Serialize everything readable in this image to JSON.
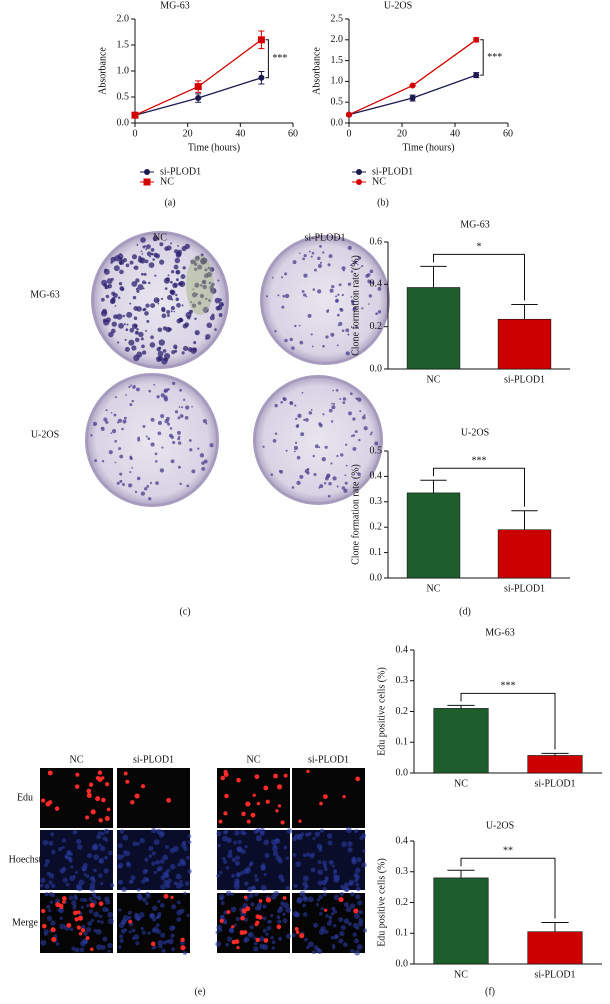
{
  "chart_data": [
    {
      "type": "line",
      "title": "MG-63",
      "xlabel": "Time (hours)",
      "ylabel": "Absorbance",
      "x": [
        0,
        24,
        48
      ],
      "xlim": [
        0,
        60
      ],
      "xticks": [
        0,
        20,
        40,
        60
      ],
      "ylim": [
        0,
        2
      ],
      "yticks": [
        {
          "value": 0,
          "label": "0.0"
        },
        0.5,
        {
          "value": 1,
          "label": "1.0"
        },
        1.5,
        {
          "value": 2,
          "label": "2.0"
        }
      ],
      "series": [
        {
          "name": "si-PLOD1",
          "color": "#1b1b4f",
          "marker": "circle",
          "values": [
            0.15,
            0.48,
            0.87
          ],
          "errors": [
            0.04,
            0.08,
            0.12
          ]
        },
        {
          "name": "NC",
          "color": "#d40000",
          "marker": "square",
          "values": [
            0.15,
            0.7,
            1.6
          ],
          "errors": [
            0.05,
            0.11,
            0.17
          ]
        }
      ],
      "annotation": "***",
      "legend": "bottom"
    },
    {
      "type": "line",
      "title": "U-2OS",
      "xlabel": "Time (hours)",
      "ylabel": "Absorbance",
      "x": [
        0,
        24,
        48
      ],
      "xlim": [
        0,
        60
      ],
      "xticks": [
        0,
        20,
        40,
        60
      ],
      "ylim": [
        0,
        2.5
      ],
      "yticks": [
        {
          "value": 0,
          "label": "0.0"
        },
        0.5,
        {
          "value": 1,
          "label": "1.0"
        },
        1.5,
        {
          "value": 2,
          "label": "2.0"
        },
        2.5
      ],
      "series": [
        {
          "name": "si-PLOD1",
          "color": "#1b1b4f",
          "marker": "circle",
          "values": [
            0.2,
            0.6,
            1.15
          ],
          "errors": [
            0.03,
            0.07,
            0.06
          ]
        },
        {
          "name": "NC",
          "color": "#d40000",
          "marker": "circle",
          "values": [
            0.2,
            0.9,
            2.0
          ],
          "errors": [
            0.02,
            0.02,
            0.05
          ]
        }
      ],
      "annotation": "***",
      "legend": "bottom"
    },
    {
      "type": "bar",
      "title": "MG-63",
      "ylabel": "Clone formation rate (%)",
      "categories": [
        "NC",
        "si-PLOD1"
      ],
      "values": [
        0.385,
        0.235
      ],
      "errors": [
        0.1,
        0.07
      ],
      "colors": [
        "#1d5e2c",
        "#cc0000"
      ],
      "ylim": [
        0,
        0.6
      ],
      "yticks": [
        {
          "value": 0,
          "label": "0.0"
        },
        0.2,
        0.4,
        0.6
      ],
      "annotation": "*"
    },
    {
      "type": "bar",
      "title": "U-2OS",
      "ylabel": "Clone formation rate (%)",
      "categories": [
        "NC",
        "si-PLOD1"
      ],
      "values": [
        0.335,
        0.19
      ],
      "errors": [
        0.05,
        0.075
      ],
      "colors": [
        "#1d5e2c",
        "#cc0000"
      ],
      "ylim": [
        0,
        0.5
      ],
      "yticks": [
        {
          "value": 0,
          "label": "0.0"
        },
        0.1,
        0.2,
        0.3,
        0.4,
        0.5
      ],
      "annotation": "***"
    },
    {
      "type": "bar",
      "title": "MG-63",
      "ylabel": "Edu positive cells (%)",
      "categories": [
        "NC",
        "si-PLOD1"
      ],
      "values": [
        0.21,
        0.057
      ],
      "errors": [
        0.01,
        0.007
      ],
      "colors": [
        "#1d5e2c",
        "#cc0000"
      ],
      "ylim": [
        0,
        0.4
      ],
      "yticks": [
        {
          "value": 0,
          "label": "0.0"
        },
        0.1,
        0.2,
        0.3,
        0.4
      ],
      "annotation": "***"
    },
    {
      "type": "bar",
      "title": "U-2OS",
      "ylabel": "Edu positive cells (%)",
      "categories": [
        "NC",
        "si-PLOD1"
      ],
      "values": [
        0.28,
        0.105
      ],
      "errors": [
        0.025,
        0.03
      ],
      "colors": [
        "#1d5e2c",
        "#cc0000"
      ],
      "ylim": [
        0,
        0.4
      ],
      "yticks": [
        {
          "value": 0,
          "label": "0.0"
        },
        0.1,
        0.2,
        0.3,
        0.4
      ],
      "annotation": "**"
    }
  ],
  "panel_labels": [
    "(a)",
    "(b)",
    "(c)",
    "(d)",
    "(e)",
    "(f)"
  ],
  "images": {
    "c": {
      "columns": [
        "NC",
        "si-PLOD1"
      ],
      "rows": [
        "MG-63",
        "U-2OS"
      ]
    },
    "e": {
      "columns": [
        "NC",
        "si-PLOD1",
        "NC",
        "si-PLOD1"
      ],
      "rows": [
        "Edu",
        "Hoechst",
        "Merge"
      ]
    }
  }
}
